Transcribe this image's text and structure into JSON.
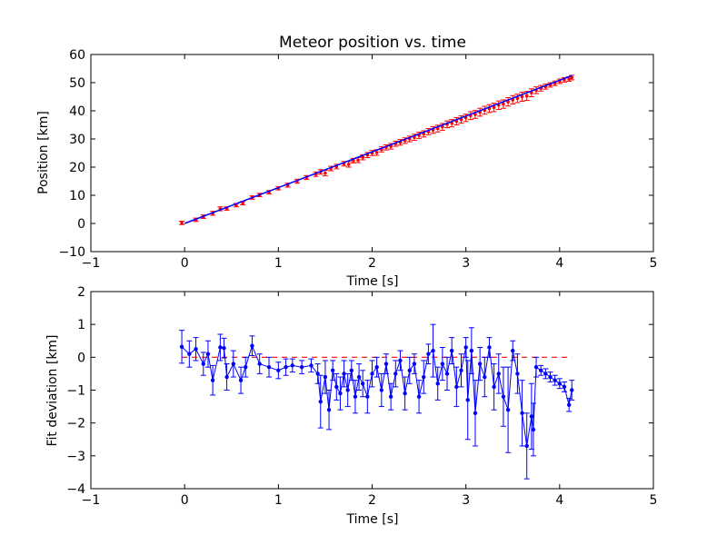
{
  "chart_data": [
    {
      "type": "scatter",
      "title": "Meteor position vs. time",
      "xlabel": "Time [s]",
      "ylabel": "Position [km]",
      "xlim": [
        -1,
        5
      ],
      "ylim": [
        -10,
        60
      ],
      "xticks": [
        "−1",
        "0",
        "1",
        "2",
        "3",
        "4",
        "5"
      ],
      "yticks": [
        "−10",
        "0",
        "10",
        "20",
        "30",
        "40",
        "50",
        "60"
      ],
      "grid": false,
      "fit_line": {
        "color": "#0000ff",
        "x": [
          0.0,
          4.13
        ],
        "y": [
          0.0,
          52.5
        ]
      },
      "series": [
        {
          "color": "#ff0000",
          "marker": "point",
          "errorbars": true,
          "points": [
            [
              -0.03,
              0.2,
              0.6
            ],
            [
              0.12,
              1.3,
              0.6
            ],
            [
              0.2,
              2.4,
              0.6
            ],
            [
              0.3,
              3.6,
              0.7
            ],
            [
              0.38,
              5.2,
              0.7
            ],
            [
              0.45,
              5.3,
              0.6
            ],
            [
              0.55,
              6.5,
              0.6
            ],
            [
              0.62,
              7.2,
              0.6
            ],
            [
              0.72,
              9.2,
              0.6
            ],
            [
              0.8,
              10.1,
              0.6
            ],
            [
              0.9,
              11.1,
              0.6
            ],
            [
              1.0,
              12.5,
              0.6
            ],
            [
              1.1,
              13.6,
              0.7
            ],
            [
              1.2,
              15.0,
              0.7
            ],
            [
              1.3,
              16.3,
              0.7
            ],
            [
              1.4,
              17.5,
              0.8
            ],
            [
              1.45,
              18.3,
              0.8
            ],
            [
              1.5,
              17.9,
              1.0
            ],
            [
              1.56,
              19.5,
              0.8
            ],
            [
              1.62,
              20.2,
              0.8
            ],
            [
              1.7,
              21.2,
              0.8
            ],
            [
              1.75,
              21.0,
              1.0
            ],
            [
              1.8,
              22.3,
              0.8
            ],
            [
              1.85,
              22.5,
              0.9
            ],
            [
              1.9,
              23.5,
              0.9
            ],
            [
              1.95,
              24.3,
              0.9
            ],
            [
              2.0,
              25.0,
              0.9
            ],
            [
              2.05,
              25.2,
              1.0
            ],
            [
              2.1,
              26.3,
              0.9
            ],
            [
              2.15,
              27.0,
              0.9
            ],
            [
              2.2,
              27.4,
              1.0
            ],
            [
              2.25,
              28.3,
              0.9
            ],
            [
              2.3,
              28.8,
              1.0
            ],
            [
              2.35,
              29.4,
              1.0
            ],
            [
              2.4,
              30.0,
              1.0
            ],
            [
              2.45,
              30.6,
              1.1
            ],
            [
              2.5,
              31.3,
              1.1
            ],
            [
              2.55,
              31.8,
              1.1
            ],
            [
              2.6,
              32.6,
              1.1
            ],
            [
              2.65,
              33.2,
              1.2
            ],
            [
              2.7,
              33.7,
              1.2
            ],
            [
              2.75,
              34.3,
              1.2
            ],
            [
              2.8,
              35.2,
              1.2
            ],
            [
              2.85,
              35.6,
              1.3
            ],
            [
              2.9,
              36.3,
              1.3
            ],
            [
              2.95,
              36.9,
              1.3
            ],
            [
              3.0,
              37.5,
              1.3
            ],
            [
              3.05,
              38.3,
              1.4
            ],
            [
              3.1,
              38.7,
              1.4
            ],
            [
              3.15,
              39.5,
              1.4
            ],
            [
              3.2,
              40.2,
              1.4
            ],
            [
              3.25,
              40.8,
              1.4
            ],
            [
              3.3,
              41.2,
              1.5
            ],
            [
              3.35,
              42.0,
              1.5
            ],
            [
              3.4,
              42.4,
              1.5
            ],
            [
              3.45,
              43.2,
              1.5
            ],
            [
              3.5,
              43.9,
              1.5
            ],
            [
              3.55,
              44.4,
              1.5
            ],
            [
              3.6,
              45.0,
              1.6
            ],
            [
              3.65,
              45.3,
              1.6
            ],
            [
              3.7,
              46.4,
              1.4
            ],
            [
              3.75,
              47.3,
              1.2
            ],
            [
              3.8,
              48.0,
              1.0
            ],
            [
              3.85,
              48.6,
              0.9
            ],
            [
              3.9,
              49.2,
              0.8
            ],
            [
              3.95,
              49.8,
              0.8
            ],
            [
              4.0,
              50.5,
              0.8
            ],
            [
              4.05,
              51.0,
              0.8
            ],
            [
              4.1,
              51.3,
              0.8
            ],
            [
              4.13,
              51.8,
              0.8
            ]
          ]
        }
      ]
    },
    {
      "type": "line",
      "xlabel": "Time [s]",
      "ylabel": "Fit deviation [km]",
      "xlim": [
        -1,
        5
      ],
      "ylim": [
        -4,
        2
      ],
      "xticks": [
        "−1",
        "0",
        "1",
        "2",
        "3",
        "4",
        "5"
      ],
      "yticks": [
        "−4",
        "−3",
        "−2",
        "−1",
        "0",
        "1",
        "2"
      ],
      "grid": false,
      "reference_line": {
        "color": "#ff0000",
        "style": "dashed",
        "x": [
          -0.03,
          4.13
        ],
        "y": [
          0.0,
          0.0
        ]
      },
      "series": [
        {
          "color": "#0000ff",
          "marker": "dot",
          "errorbars": true,
          "points": [
            [
              -0.03,
              0.32,
              0.5
            ],
            [
              0.05,
              0.1,
              0.4
            ],
            [
              0.12,
              0.25,
              0.35
            ],
            [
              0.2,
              -0.2,
              0.35
            ],
            [
              0.25,
              0.1,
              0.4
            ],
            [
              0.3,
              -0.7,
              0.45
            ],
            [
              0.38,
              0.3,
              0.4
            ],
            [
              0.42,
              0.28,
              0.3
            ],
            [
              0.45,
              -0.6,
              0.4
            ],
            [
              0.52,
              -0.2,
              0.4
            ],
            [
              0.6,
              -0.7,
              0.4
            ],
            [
              0.65,
              -0.3,
              0.3
            ],
            [
              0.72,
              0.35,
              0.3
            ],
            [
              0.8,
              -0.2,
              0.3
            ],
            [
              0.9,
              -0.3,
              0.3
            ],
            [
              1.0,
              -0.4,
              0.25
            ],
            [
              1.08,
              -0.3,
              0.25
            ],
            [
              1.15,
              -0.25,
              0.2
            ],
            [
              1.25,
              -0.3,
              0.2
            ],
            [
              1.35,
              -0.25,
              0.2
            ],
            [
              1.42,
              -0.5,
              0.3
            ],
            [
              1.45,
              -1.35,
              0.8
            ],
            [
              1.5,
              -0.6,
              0.5
            ],
            [
              1.54,
              -1.6,
              0.6
            ],
            [
              1.58,
              -0.4,
              0.3
            ],
            [
              1.62,
              -0.9,
              0.4
            ],
            [
              1.66,
              -1.1,
              0.5
            ],
            [
              1.7,
              -0.5,
              0.4
            ],
            [
              1.74,
              -1.0,
              0.5
            ],
            [
              1.78,
              -0.4,
              0.3
            ],
            [
              1.82,
              -1.2,
              0.5
            ],
            [
              1.86,
              -0.6,
              0.4
            ],
            [
              1.9,
              -0.8,
              0.4
            ],
            [
              1.95,
              -1.2,
              0.5
            ],
            [
              2.0,
              -0.5,
              0.4
            ],
            [
              2.05,
              -0.3,
              0.3
            ],
            [
              2.1,
              -1.0,
              0.5
            ],
            [
              2.15,
              -0.2,
              0.3
            ],
            [
              2.2,
              -1.2,
              0.4
            ],
            [
              2.25,
              -0.5,
              0.4
            ],
            [
              2.3,
              -0.1,
              0.3
            ],
            [
              2.35,
              -1.1,
              0.5
            ],
            [
              2.4,
              -0.4,
              0.4
            ],
            [
              2.45,
              -0.2,
              0.3
            ],
            [
              2.5,
              -1.2,
              0.5
            ],
            [
              2.55,
              -0.6,
              0.5
            ],
            [
              2.6,
              0.1,
              0.3
            ],
            [
              2.65,
              0.2,
              0.8
            ],
            [
              2.7,
              -0.8,
              0.5
            ],
            [
              2.75,
              -0.2,
              0.5
            ],
            [
              2.8,
              -0.5,
              0.5
            ],
            [
              2.85,
              0.2,
              0.4
            ],
            [
              2.9,
              -0.9,
              0.6
            ],
            [
              2.95,
              -0.4,
              0.5
            ],
            [
              3.0,
              0.3,
              0.3
            ],
            [
              3.02,
              -1.3,
              1.2
            ],
            [
              3.06,
              0.2,
              0.7
            ],
            [
              3.1,
              -1.7,
              1.0
            ],
            [
              3.15,
              -0.2,
              0.5
            ],
            [
              3.2,
              -0.6,
              0.6
            ],
            [
              3.25,
              0.3,
              0.3
            ],
            [
              3.3,
              -0.9,
              0.7
            ],
            [
              3.35,
              -0.5,
              0.6
            ],
            [
              3.4,
              -1.2,
              0.9
            ],
            [
              3.45,
              -1.6,
              1.3
            ],
            [
              3.5,
              0.2,
              0.3
            ],
            [
              3.55,
              -0.5,
              0.6
            ],
            [
              3.6,
              -1.7,
              1.0
            ],
            [
              3.65,
              -2.7,
              1.0
            ],
            [
              3.7,
              -1.8,
              1.0
            ],
            [
              3.72,
              -2.2,
              0.8
            ],
            [
              3.75,
              -0.3,
              0.3
            ],
            [
              3.8,
              -0.4,
              0.15
            ],
            [
              3.85,
              -0.5,
              0.15
            ],
            [
              3.9,
              -0.6,
              0.15
            ],
            [
              3.95,
              -0.7,
              0.15
            ],
            [
              4.0,
              -0.8,
              0.15
            ],
            [
              4.05,
              -0.9,
              0.15
            ],
            [
              4.1,
              -1.45,
              0.2
            ],
            [
              4.13,
              -1.0,
              0.3
            ]
          ]
        }
      ]
    }
  ]
}
